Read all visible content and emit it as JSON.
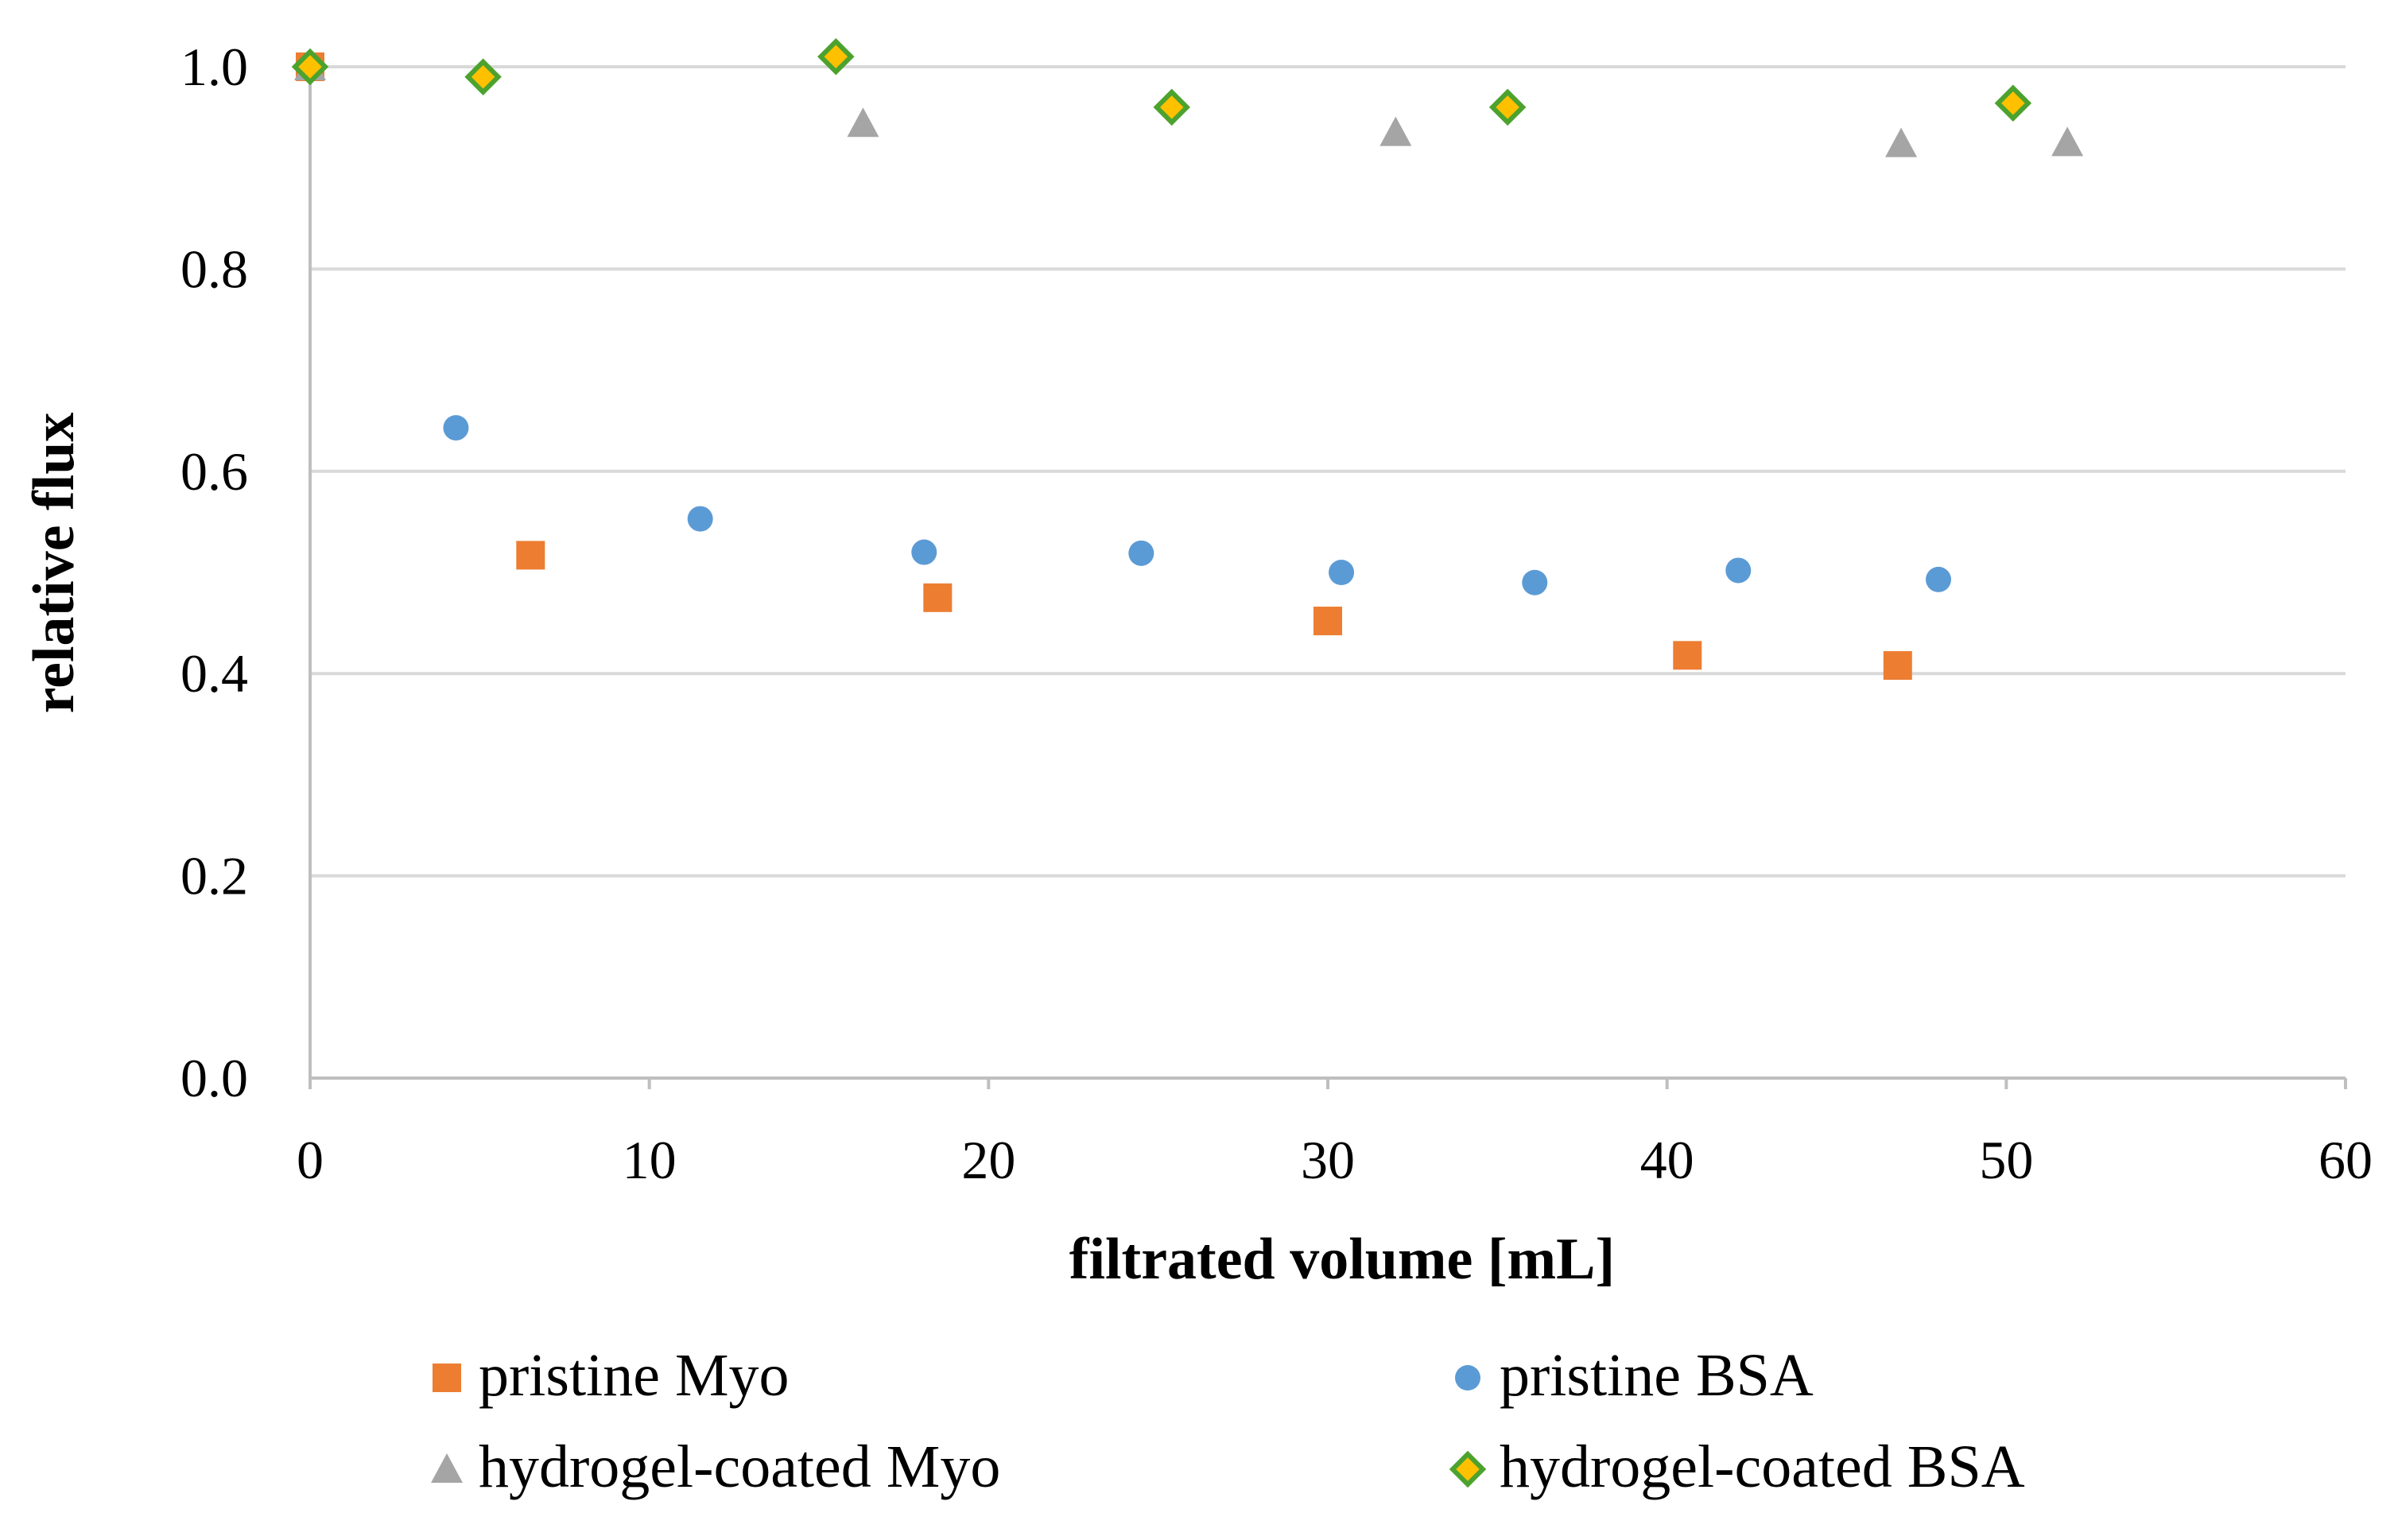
{
  "chart_data": {
    "type": "scatter",
    "title": "",
    "xlabel": "filtrated volume [mL]",
    "ylabel": "relative flux",
    "xlim": [
      0,
      60
    ],
    "ylim": [
      0,
      1.0
    ],
    "xticks": [
      "0",
      "10",
      "20",
      "30",
      "40",
      "50",
      "60"
    ],
    "yticks": [
      "0.0",
      "0.2",
      "0.4",
      "0.6",
      "0.8",
      "1.0"
    ],
    "grid": "horizontal",
    "legend_position": "bottom",
    "series": [
      {
        "name": "pristine Myo",
        "marker": "square",
        "color": "#ED7D31",
        "points": [
          [
            0,
            1.0
          ],
          [
            6.5,
            0.517
          ],
          [
            18.5,
            0.475
          ],
          [
            30.0,
            0.452
          ],
          [
            40.6,
            0.418
          ],
          [
            46.8,
            0.408
          ]
        ]
      },
      {
        "name": "pristine BSA",
        "marker": "circle",
        "color": "#5B9BD5",
        "points": [
          [
            0,
            1.0
          ],
          [
            4.3,
            0.643
          ],
          [
            11.5,
            0.553
          ],
          [
            18.1,
            0.52
          ],
          [
            24.5,
            0.519
          ],
          [
            30.4,
            0.5
          ],
          [
            36.1,
            0.49
          ],
          [
            42.1,
            0.502
          ],
          [
            48.0,
            0.493
          ]
        ]
      },
      {
        "name": "hydrogel-coated Myo",
        "marker": "triangle",
        "color": "#A5A5A5",
        "points": [
          [
            0,
            1.0
          ],
          [
            16.3,
            0.944
          ],
          [
            32.0,
            0.935
          ],
          [
            46.9,
            0.924
          ],
          [
            51.8,
            0.925
          ]
        ]
      },
      {
        "name": "hydrogel-coated BSA",
        "marker": "diamond",
        "color": "#FFC000",
        "stroke": "#4CA22E",
        "points": [
          [
            0,
            1.0
          ],
          [
            5.1,
            0.99
          ],
          [
            15.5,
            1.01
          ],
          [
            25.4,
            0.96
          ],
          [
            35.3,
            0.96
          ],
          [
            50.2,
            0.964
          ]
        ]
      }
    ]
  }
}
